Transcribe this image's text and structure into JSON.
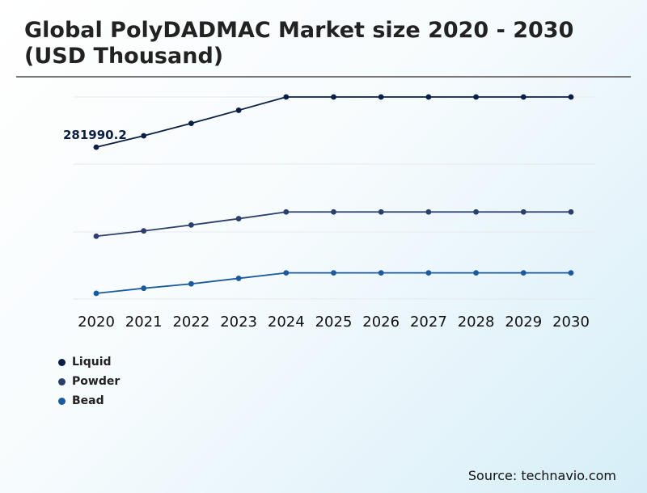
{
  "title": "Global PolyDADMAC Market size 2020 - 2030 (USD Thousand)",
  "source": "Source: technavio.com",
  "chart_data": {
    "type": "line",
    "x": [
      "2020",
      "2021",
      "2022",
      "2023",
      "2024",
      "2025",
      "2026",
      "2027",
      "2028",
      "2029",
      "2030"
    ],
    "ylim": [
      0,
      375000
    ],
    "grid": true,
    "legend_position": "bottom-left",
    "annotations": [
      {
        "series": "Liquid",
        "x": "2020",
        "text": "281990.2"
      }
    ],
    "series": [
      {
        "name": "Liquid",
        "color": "#0b1f44",
        "values": [
          281990.2,
          287400,
          293300,
          299500,
          305800,
          305800,
          305800,
          305800,
          305800,
          305800,
          305800
        ]
      },
      {
        "name": "Powder",
        "color": "#2c3e6b",
        "values": [
          239800,
          242300,
          245100,
          248100,
          251300,
          251300,
          251300,
          251300,
          251300,
          251300,
          251300
        ]
      },
      {
        "name": "Bead",
        "color": "#1a5a9e",
        "values": [
          212700,
          215100,
          217200,
          219800,
          222400,
          222400,
          222400,
          222400,
          222400,
          222400,
          222400
        ]
      }
    ]
  }
}
